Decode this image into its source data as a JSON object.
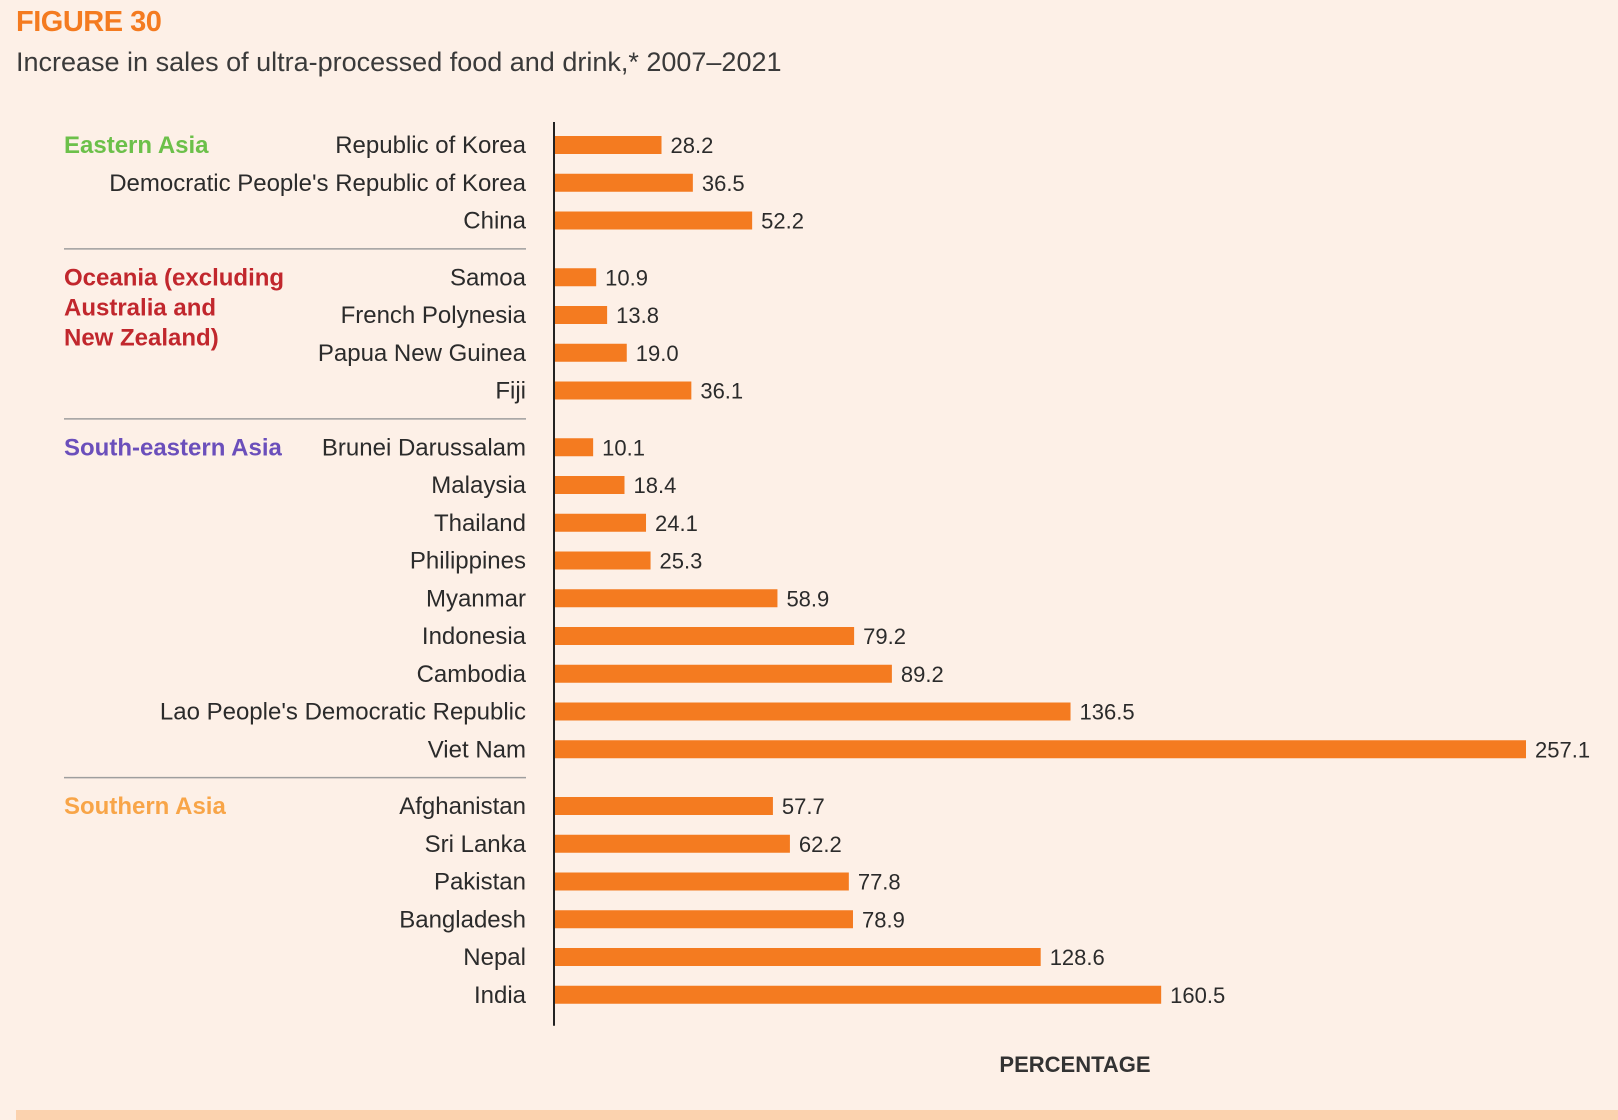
{
  "figure_label": "FIGURE 30",
  "title": "Increase in sales of ultra-processed food and drink,* 2007–2021",
  "colors": {
    "bar": "#f47b20",
    "background": "#fdf0e7",
    "axis": "#222222",
    "separator": "#9e9e9e"
  },
  "chart_data": {
    "type": "bar",
    "orientation": "horizontal",
    "xlabel": "PERCENTAGE",
    "xlim": [
      0,
      257.1
    ],
    "grid": false,
    "groups": [
      {
        "name": "Eastern Asia",
        "color": "#6cc04a",
        "label_lines": [
          "Eastern Asia"
        ],
        "categories": [
          "Republic of Korea",
          "Democratic People's Republic of Korea",
          "China"
        ],
        "values": [
          28.2,
          36.5,
          52.2
        ],
        "value_labels": [
          "28.2",
          "36.5",
          "52.2"
        ]
      },
      {
        "name": "Oceania (excluding Australia and New Zealand)",
        "color": "#c1272d",
        "label_lines": [
          "Oceania (excluding",
          "Australia and",
          "New Zealand)"
        ],
        "categories": [
          "Samoa",
          "French Polynesia",
          "Papua New Guinea",
          "Fiji"
        ],
        "values": [
          10.9,
          13.8,
          19.0,
          36.1
        ],
        "value_labels": [
          "10.9",
          "13.8",
          "19.0",
          "36.1"
        ]
      },
      {
        "name": "South-eastern Asia",
        "color": "#6b4fbb",
        "label_lines": [
          "South-eastern Asia"
        ],
        "categories": [
          "Brunei Darussalam",
          "Malaysia",
          "Thailand",
          "Philippines",
          "Myanmar",
          "Indonesia",
          "Cambodia",
          "Lao People's Democratic Republic",
          "Viet Nam"
        ],
        "values": [
          10.1,
          18.4,
          24.1,
          25.3,
          58.9,
          79.2,
          89.2,
          136.5,
          257.1
        ],
        "value_labels": [
          "10.1",
          "18.4",
          "24.1",
          "25.3",
          "58.9",
          "79.2",
          "89.2",
          "136.5",
          "257.1"
        ]
      },
      {
        "name": "Southern Asia",
        "color": "#f8a548",
        "label_lines": [
          "Southern Asia"
        ],
        "categories": [
          "Afghanistan",
          "Sri Lanka",
          "Pakistan",
          "Bangladesh",
          "Nepal",
          "India"
        ],
        "values": [
          57.7,
          62.2,
          77.8,
          78.9,
          128.6,
          160.5
        ],
        "value_labels": [
          "57.7",
          "62.2",
          "77.8",
          "78.9",
          "128.6",
          "160.5"
        ]
      }
    ]
  }
}
